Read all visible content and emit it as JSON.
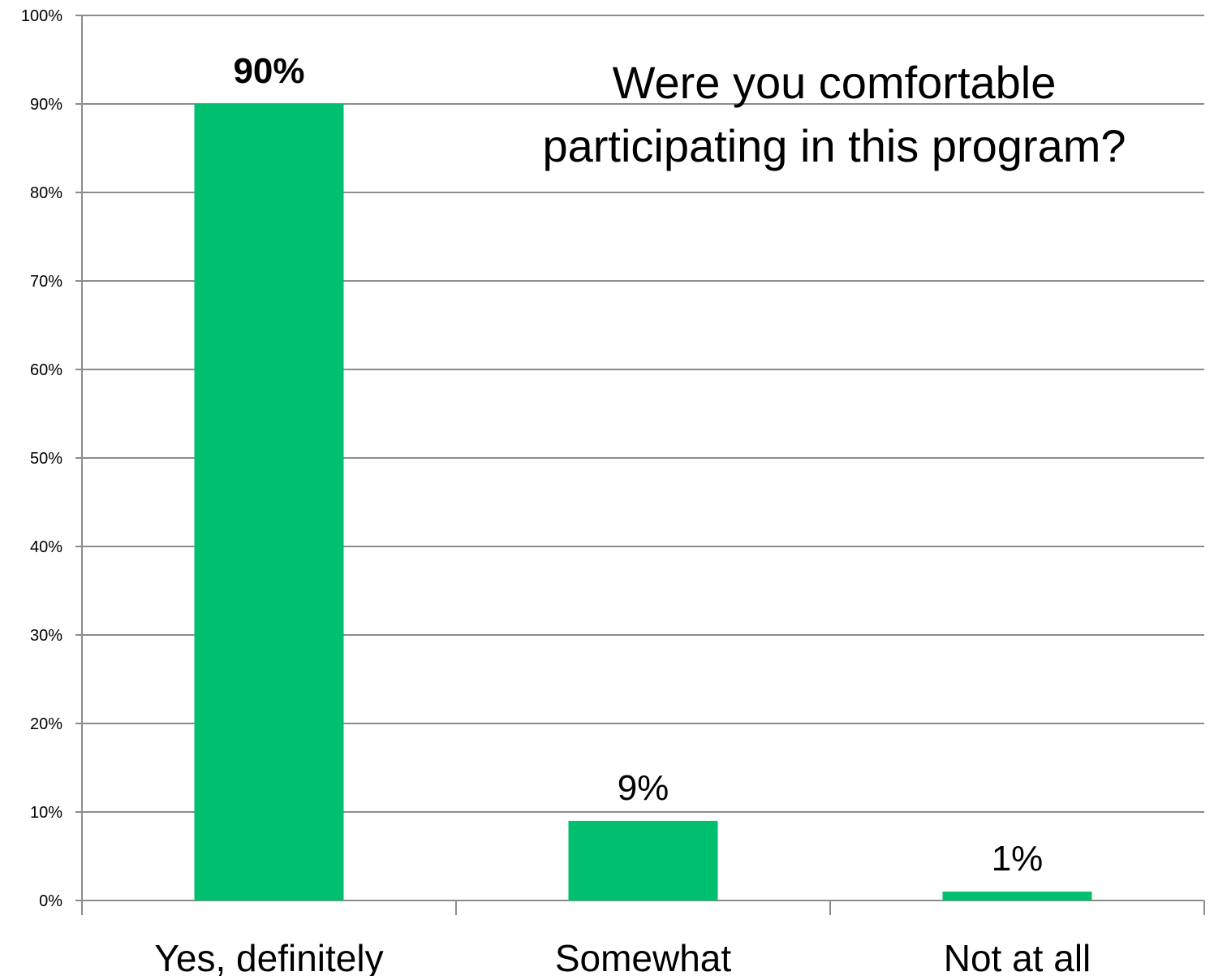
{
  "chart_data": {
    "type": "bar",
    "title_lines": [
      "Were you comfortable",
      "participating in this program?"
    ],
    "categories": [
      "Yes, definitely",
      "Somewhat",
      "Not at all"
    ],
    "values": [
      90,
      9,
      1
    ],
    "data_labels": [
      "90%",
      "9%",
      "1%"
    ],
    "data_label_bold": [
      true,
      false,
      false
    ],
    "xlabel": "",
    "ylabel": "",
    "ylim": [
      0,
      100
    ],
    "yticks": [
      0,
      10,
      20,
      30,
      40,
      50,
      60,
      70,
      80,
      90,
      100
    ],
    "ytick_labels": [
      "0%",
      "10%",
      "20%",
      "30%",
      "40%",
      "50%",
      "60%",
      "70%",
      "80%",
      "90%",
      "100%"
    ],
    "grid": true,
    "legend": "none",
    "bar_color": "#00BF6F"
  }
}
